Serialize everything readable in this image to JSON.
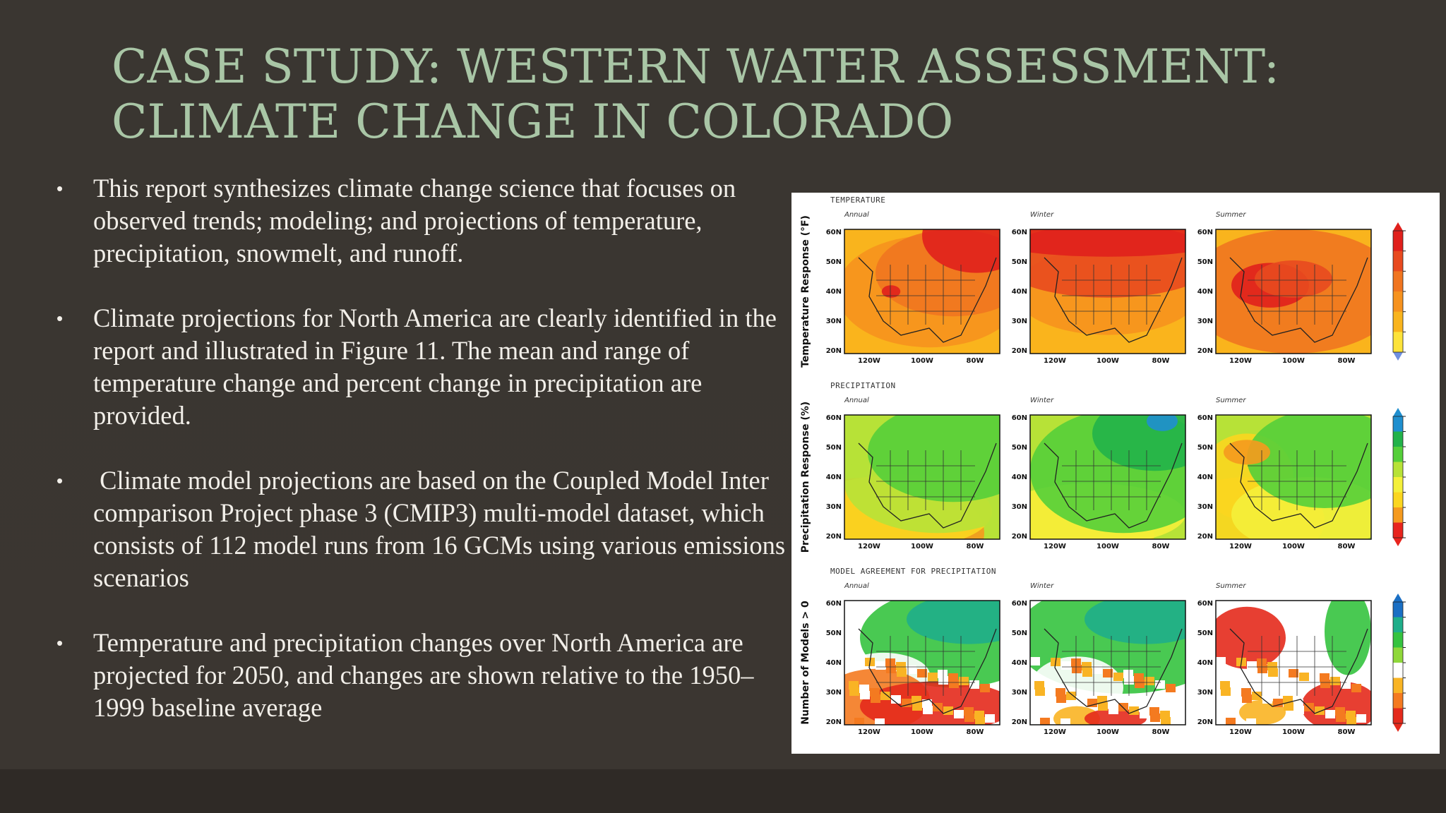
{
  "slide": {
    "title": "CASE STUDY: WESTERN WATER ASSESSMENT: CLIMATE CHANGE IN COLORADO",
    "bullets": [
      "This report synthesizes climate change science that focuses on observed trends; modeling; and projections of temperature, precipitation, snowmelt, and runoff.",
      "Climate projections for North America are clearly identified in the report and illustrated in Figure 11. The mean and range of temperature change and percent change in precipitation are provided.",
      " Climate model projections are based on the Coupled Model Inter comparison Project phase 3 (CMIP3) multi-model dataset, which consists of 112 model runs from 16 GCMs using various emissions scenarios",
      "Temperature and precipitation changes over North America are projected for 2050, and changes are shown relative to the 1950–1999 baseline average"
    ],
    "bullet_glyph": "•"
  },
  "figure": {
    "rows": [
      {
        "section_label": "TEMPERATURE",
        "y_title": "Temperature Response (°F)",
        "palette": "warm"
      },
      {
        "section_label": "PRECIPITATION",
        "y_title": "Precipitation Response (%)",
        "palette": "precip"
      },
      {
        "section_label": "MODEL AGREEMENT FOR PRECIPITATION",
        "y_title": "Number of Models > 0",
        "palette": "agree"
      }
    ],
    "columns": [
      "Annual",
      "Winter",
      "Summer"
    ],
    "lat_ticks": [
      "60N",
      "50N",
      "40N",
      "30N",
      "20N"
    ],
    "lon_ticks": [
      "120W",
      "100W",
      "80W"
    ],
    "colors": {
      "warm": [
        "#fde33a",
        "#f9b41d",
        "#f6921e",
        "#f07520",
        "#e84a1f",
        "#e0201c"
      ],
      "precip": [
        "#e8241d",
        "#f59a1e",
        "#fbd61f",
        "#f4f03a",
        "#b7e237",
        "#55cf3a",
        "#22b24a",
        "#1f8fcf"
      ],
      "agree": [
        "#e42a1c",
        "#f47a20",
        "#f9b424",
        "#ffffff",
        "#8fd83a",
        "#35c33f",
        "#1fae8a",
        "#1a6fc4"
      ]
    }
  }
}
